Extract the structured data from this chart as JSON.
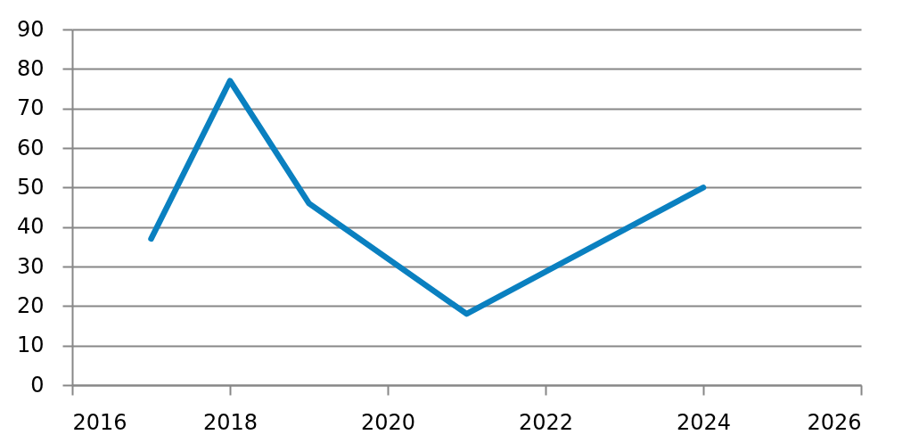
{
  "chart_data": {
    "type": "line",
    "x": [
      2017,
      2018,
      2019,
      2021,
      2024
    ],
    "series": [
      {
        "color": "#0a80c0",
        "values": [
          37,
          77,
          46,
          18,
          50
        ]
      }
    ],
    "xlim": [
      2016,
      2026
    ],
    "xticks": [
      2016,
      2018,
      2020,
      2022,
      2024,
      2026
    ],
    "ylim": [
      0,
      90
    ],
    "yticks": [
      0,
      10,
      20,
      30,
      40,
      50,
      60,
      70,
      80,
      90
    ],
    "grid": "y",
    "line_style": "solid"
  }
}
